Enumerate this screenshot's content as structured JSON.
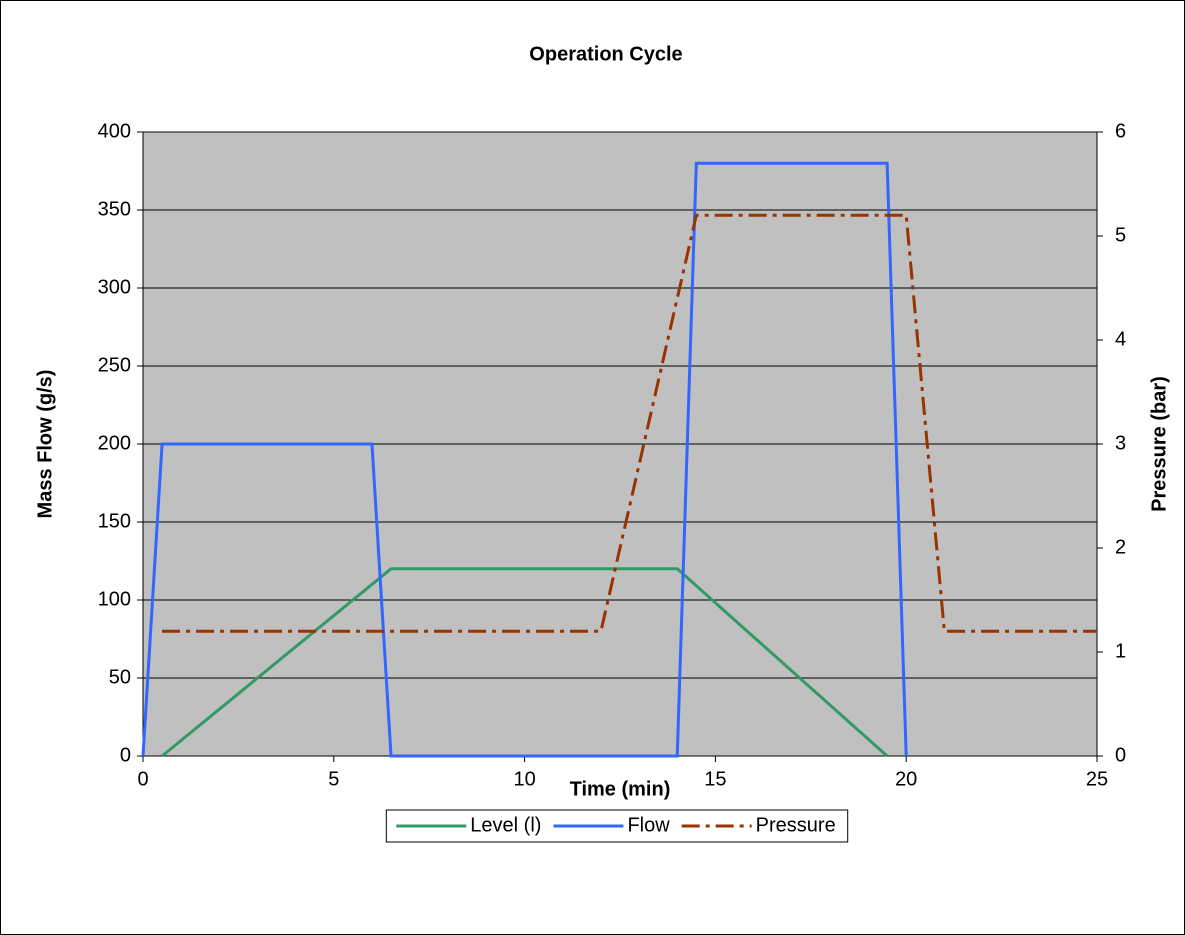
{
  "chart_data": {
    "type": "line",
    "title": "Operation Cycle",
    "x_label": "Time (min)",
    "y_label": "Mass Flow (g/s)",
    "y2_label": "Pressure (bar)",
    "xlim": [
      0,
      25
    ],
    "xticks": [
      0,
      5,
      10,
      15,
      20,
      25
    ],
    "ylim": [
      0,
      400
    ],
    "yticks": [
      0,
      50,
      100,
      150,
      200,
      250,
      300,
      350,
      400
    ],
    "y2lim": [
      0,
      6
    ],
    "y2ticks": [
      0,
      1,
      2,
      3,
      4,
      5,
      6
    ],
    "grid": true,
    "background": "#c0c0c0",
    "legend": "bottom",
    "series": [
      {
        "name": "Level (l)",
        "color": "#339966",
        "dash": "solid",
        "x": [
          0.5,
          6.5,
          14,
          19.5
        ],
        "values": [
          0,
          120,
          120,
          0
        ]
      },
      {
        "name": "Flow",
        "color": "#3366ff",
        "dash": "solid",
        "x": [
          0,
          0.5,
          6,
          6.5,
          14,
          14.5,
          19.5,
          20
        ],
        "values": [
          0,
          200,
          200,
          0,
          0,
          380,
          380,
          0
        ]
      },
      {
        "name": "Pressure",
        "color": "#993300",
        "dash": "dashdot",
        "axis": "y2",
        "x": [
          0.5,
          12,
          14.5,
          20,
          21,
          25
        ],
        "values": [
          1.2,
          1.2,
          5.2,
          5.2,
          1.2,
          1.2
        ]
      }
    ]
  }
}
